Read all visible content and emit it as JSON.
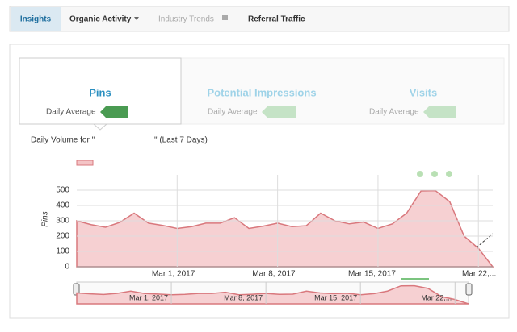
{
  "tabs": [
    {
      "label": "Insights"
    },
    {
      "label": "Organic Activity"
    },
    {
      "label": "Industry Trends"
    },
    {
      "label": "Referral Traffic"
    }
  ],
  "metrics": [
    {
      "label": "Pins",
      "sublabel": "Daily Average"
    },
    {
      "label": "Potential Impressions",
      "sublabel": "Daily Average"
    },
    {
      "label": "Visits",
      "sublabel": "Daily Average"
    }
  ],
  "chart_data": {
    "type": "area",
    "title": "Daily Volume for \"",
    "title_end": "\" (Last 7 Days)",
    "ylabel": "Pins",
    "categories": [
      null,
      null,
      null,
      null,
      null,
      null,
      null,
      "Mar 1, 2017",
      null,
      null,
      null,
      null,
      null,
      null,
      "Mar 8, 2017",
      null,
      null,
      null,
      null,
      null,
      null,
      "Mar 15, 2017",
      null,
      null,
      null,
      null,
      null,
      null,
      "Mar 22,...",
      null
    ],
    "series": [
      {
        "color": "#d9787d",
        "values": [
          300,
          275,
          258,
          290,
          350,
          285,
          270,
          250,
          262,
          285,
          285,
          320,
          250,
          265,
          285,
          262,
          268,
          350,
          300,
          280,
          292,
          250,
          280,
          350,
          495,
          497,
          425,
          200,
          120,
          0
        ]
      }
    ],
    "ylim": [
      0,
      600
    ],
    "yticks": [
      0,
      100,
      200,
      300,
      400,
      500
    ],
    "grid": true
  }
}
